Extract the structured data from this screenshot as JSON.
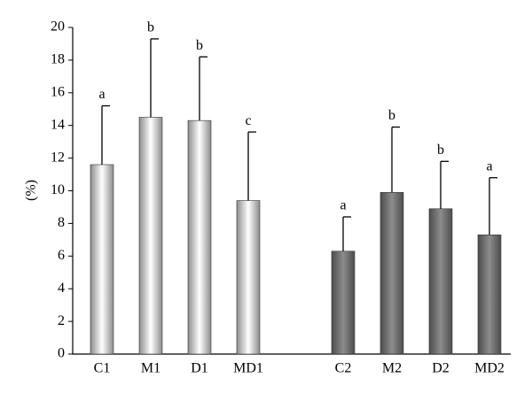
{
  "chart_data": {
    "type": "bar",
    "y_label": "(%)",
    "categories": [
      "C1",
      "M1",
      "D1",
      "MD1",
      "C2",
      "M2",
      "D2",
      "MD2"
    ],
    "values": [
      11.6,
      14.5,
      14.3,
      9.4,
      6.3,
      9.9,
      8.9,
      7.3
    ],
    "errors": [
      3.6,
      4.8,
      3.9,
      4.2,
      2.1,
      4.0,
      2.9,
      3.5
    ],
    "annotations": [
      "a",
      "b",
      "b",
      "c",
      "a",
      "b",
      "b",
      "a"
    ],
    "colors": [
      "#ffffff",
      "#ffffff",
      "#ffffff",
      "#ffffff",
      "#8c8c8c",
      "#8c8c8c",
      "#8c8c8c",
      "#8c8c8c"
    ],
    "ylim": [
      0,
      20
    ],
    "yticks": [
      0,
      2,
      4,
      6,
      8,
      10,
      12,
      14,
      16,
      18,
      20
    ],
    "grid": false
  }
}
